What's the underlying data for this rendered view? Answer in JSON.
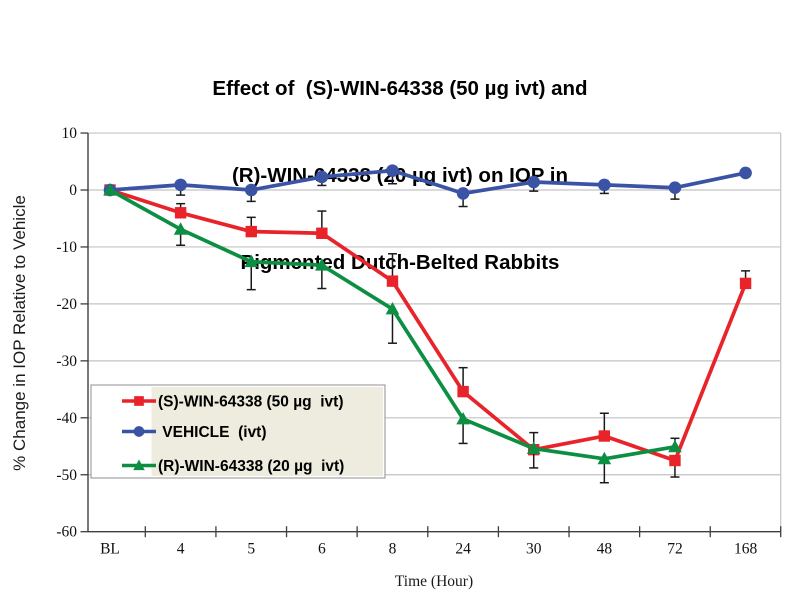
{
  "title": {
    "lines": [
      "Effect of  (S)-WIN-64338 (50 µg ivt) and",
      "(R)-WIN-64338 (20 µg ivt) on IOP in",
      "Pigmented Dutch-Belted Rabbits"
    ]
  },
  "chart_data": {
    "type": "line",
    "title": "Effect of (S)-WIN-64338 (50 µg ivt) and (R)-WIN-64338 (20 µg ivt) on IOP in Pigmented Dutch-Belted Rabbits",
    "xlabel": "Time (Hour)",
    "ylabel": "% Change in IOP Relative to Vehicle",
    "categories": [
      "BL",
      "4",
      "5",
      "6",
      "8",
      "24",
      "30",
      "48",
      "72",
      "168"
    ],
    "ylim": [
      -60,
      10
    ],
    "ytick_interval": 10,
    "grid": true,
    "legend_position": "inside bottom-left",
    "series": [
      {
        "id": "s_win",
        "name": "(S)-WIN-64338 (50 µg ivt)",
        "legend_label": "(S)-WIN-64338 (50 µg  ivt)",
        "marker": "square",
        "color": "#e8232a",
        "values": [
          0,
          -4,
          -7.3,
          -7.6,
          -16,
          -35.4,
          -45.6,
          -43.2,
          -47.5,
          -16.4
        ],
        "errors": [
          0,
          1.6,
          2.5,
          3.9,
          4.8,
          4.2,
          3,
          4,
          2.9,
          2.2
        ],
        "error_dirs": [
          "none",
          "up",
          "up",
          "up",
          "up",
          "up",
          "up",
          "up",
          "down",
          "up"
        ]
      },
      {
        "id": "vehicle",
        "name": "VEHICLE (ivt)",
        "legend_label": " VEHICLE  (ivt)",
        "marker": "circle",
        "color": "#3a53a4",
        "values": [
          0,
          0.9,
          0,
          2.3,
          3.4,
          -0.6,
          1.4,
          0.9,
          0.4,
          3
        ],
        "errors": [
          0,
          1.8,
          2,
          1.5,
          2.3,
          2.3,
          1.6,
          1.5,
          2,
          0
        ],
        "error_dirs": [
          "none",
          "down",
          "down",
          "down",
          "down",
          "down",
          "down",
          "down",
          "down",
          "none"
        ]
      },
      {
        "id": "r_win",
        "name": "(R)-WIN-64338 (20 µg ivt)",
        "legend_label": "(R)-WIN-64338 (20 µg  ivt)",
        "marker": "triangle",
        "color": "#0c8f43",
        "values": [
          0,
          -6.9,
          -12.6,
          -13.2,
          -20.9,
          -40.2,
          -45.4,
          -47.2,
          -45.1,
          null
        ],
        "errors": [
          0,
          2.8,
          4.9,
          4.1,
          6,
          4.3,
          3.4,
          4.2,
          1.5,
          0
        ],
        "error_dirs": [
          "none",
          "down",
          "down",
          "down",
          "down",
          "down",
          "down",
          "down",
          "up",
          "none"
        ]
      }
    ],
    "colors": {
      "gridline": "#c3c3c3",
      "axis": "#3f3f3f",
      "error_bar": "#1a1a1a",
      "tick_label": "#111111",
      "legend_border": "#8f8f8f",
      "legend_fill": "#ffffff",
      "legend_text_background": "#edecdf",
      "legend_text": "#000000",
      "background": "#ffffff"
    }
  }
}
